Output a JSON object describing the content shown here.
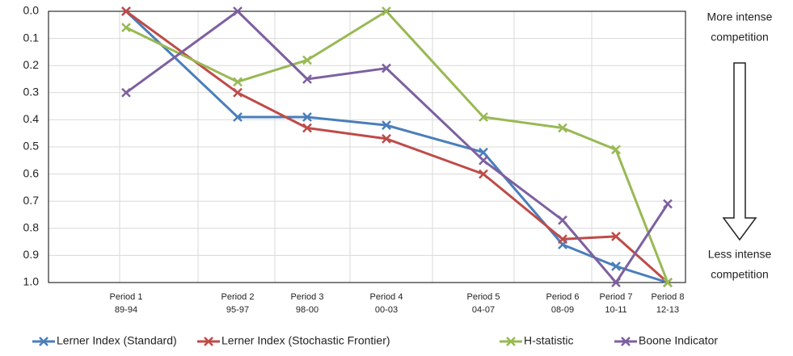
{
  "chart_data": {
    "type": "line",
    "categories": [
      "Period 1",
      "Period 2",
      "Period 3",
      "Period 4",
      "Period 5",
      "Period 6",
      "Period 7",
      "Period 8"
    ],
    "category_sublabels": [
      "89-94",
      "95-97",
      "98-00",
      "00-03",
      "04-07",
      "08-09",
      "10-11",
      "12-13"
    ],
    "series": [
      {
        "name": "Lerner Index (Standard)",
        "color": "#4a7ebb",
        "values": [
          0.0,
          0.39,
          0.39,
          0.42,
          0.52,
          0.86,
          0.94,
          1.0
        ]
      },
      {
        "name": "Lerner Index (Stochastic Frontier)",
        "color": "#be4b48",
        "values": [
          0.0,
          0.3,
          0.43,
          0.47,
          0.6,
          0.84,
          0.83,
          1.0
        ]
      },
      {
        "name": "H-statistic",
        "color": "#98b954",
        "values": [
          0.06,
          0.26,
          0.18,
          0.0,
          0.39,
          0.43,
          0.51,
          1.0
        ]
      },
      {
        "name": "Boone Indicator",
        "color": "#7d60a0",
        "values": [
          0.3,
          0.0,
          0.25,
          0.21,
          0.55,
          0.77,
          1.0,
          0.71
        ]
      }
    ],
    "ylim": [
      0,
      1
    ],
    "y_inverted": true,
    "yticks": [
      {
        "value": 0,
        "label": "0.0"
      },
      0.1,
      0.2,
      0.3,
      0.4,
      0.5,
      0.6,
      0.7,
      0.8,
      0.9,
      {
        "value": 1,
        "label": "1.0"
      }
    ],
    "grid": true,
    "annotations": {
      "top": [
        "More intense",
        "competition"
      ],
      "bottom": [
        "Less intense",
        "competition"
      ]
    },
    "legend": "bottom"
  }
}
